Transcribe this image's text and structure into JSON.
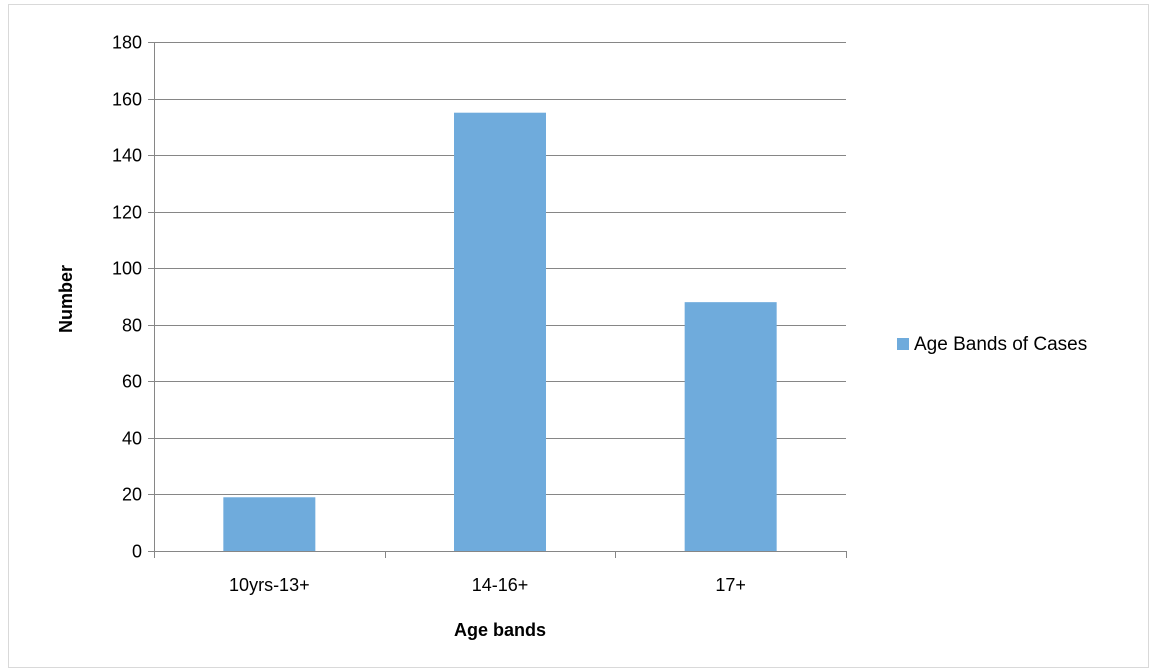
{
  "chart_data": {
    "type": "bar",
    "title": "",
    "xlabel": "Age bands",
    "ylabel": "Number",
    "categories": [
      "10yrs-13+",
      "14-16+",
      "17+"
    ],
    "series": [
      {
        "name": "Age Bands of Cases",
        "values": [
          19,
          155,
          88
        ],
        "color": "#6fabdc"
      }
    ],
    "ylim": [
      0,
      180
    ],
    "yticks": [
      "0",
      "20",
      "40",
      "60",
      "80",
      "100",
      "120",
      "140",
      "160",
      "180"
    ],
    "grid": true,
    "legend_position": "right"
  }
}
